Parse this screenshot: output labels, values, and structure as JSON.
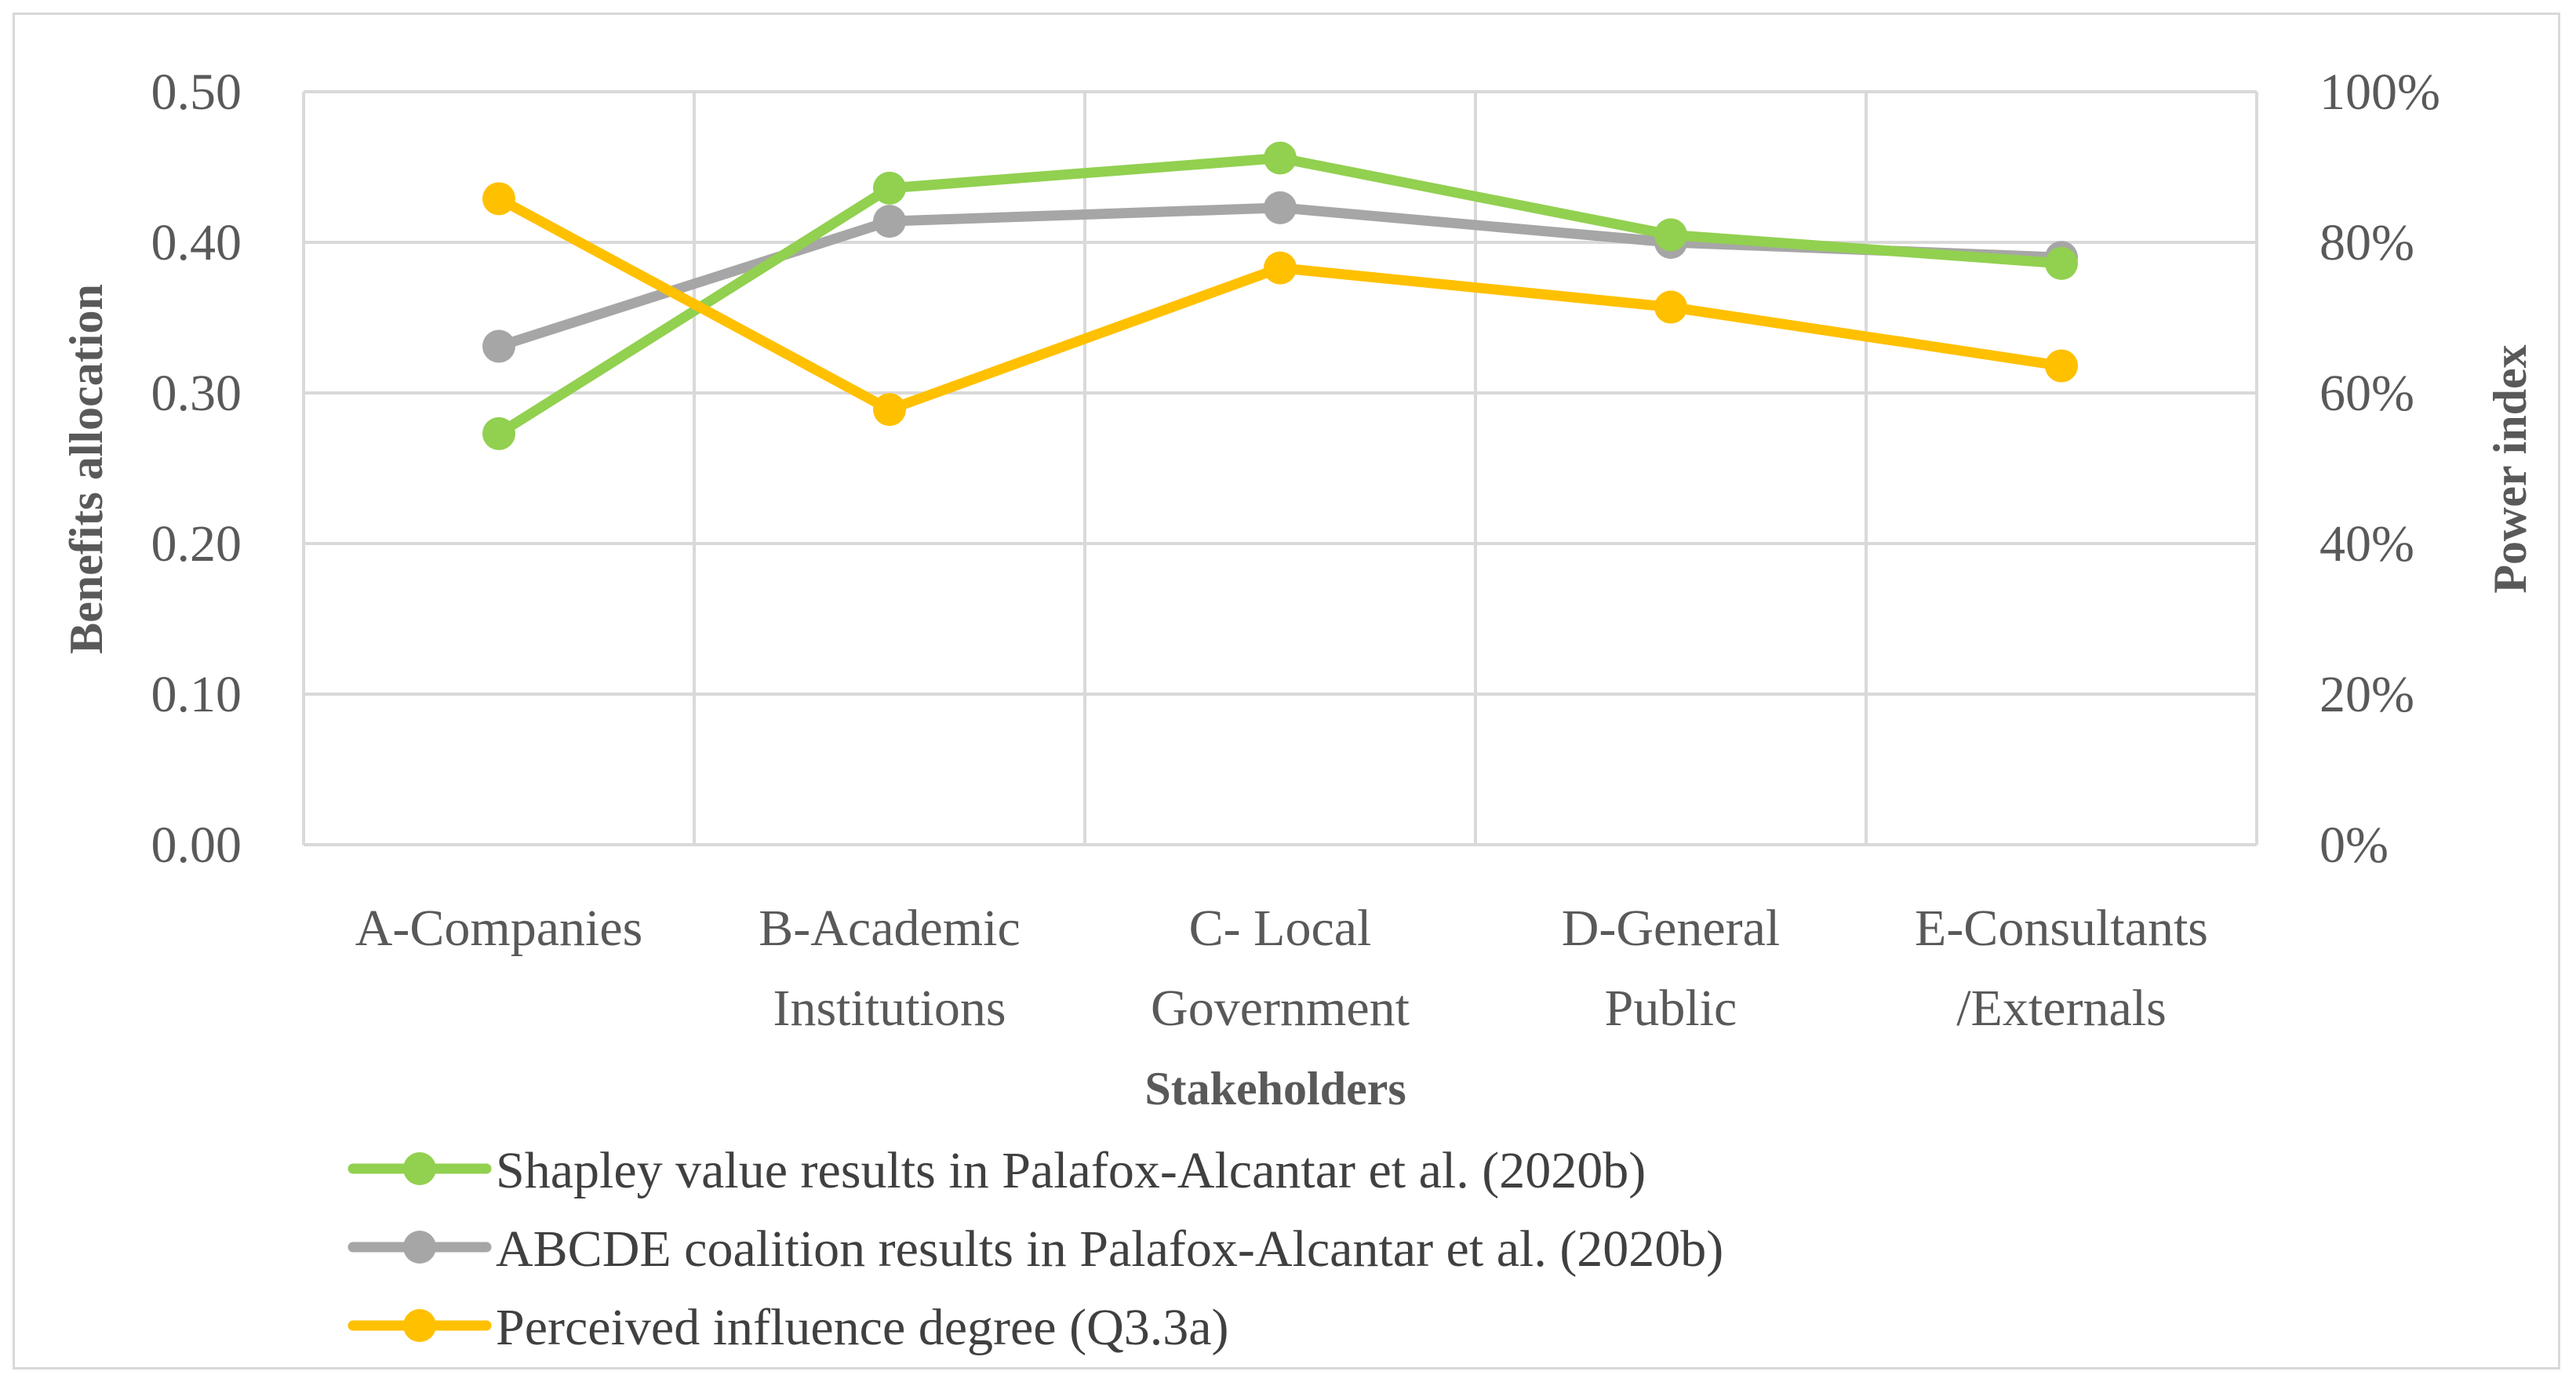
{
  "chart_data": {
    "type": "line",
    "categories": [
      [
        "A-Companies"
      ],
      [
        "B-Academic",
        "Institutions"
      ],
      [
        "C- Local",
        "Government"
      ],
      [
        "D-General",
        "Public"
      ],
      [
        "E-Consultants",
        "/Externals"
      ]
    ],
    "xlabel": "Stakeholders",
    "ylabel": "Benefits allocation",
    "y2label": "Power index",
    "ylim": [
      0,
      0.5
    ],
    "y2lim": [
      0,
      100
    ],
    "y_ticks": [
      "0.00",
      "0.10",
      "0.20",
      "0.30",
      "0.40",
      "0.50"
    ],
    "y2_ticks": [
      "0%",
      "20%",
      "40%",
      "60%",
      "80%",
      "100%"
    ],
    "grid": true,
    "legend_position": "bottom",
    "series": [
      {
        "name": "Shapley value results in Palafox-Alcantar et al. (2020b)",
        "axis": "left",
        "color": "#92d050",
        "values": [
          0.273,
          0.436,
          0.456,
          0.405,
          0.386
        ]
      },
      {
        "name": "ABCDE coalition results in Palafox-Alcantar et al. (2020b)",
        "axis": "left",
        "color": "#a6a6a6",
        "values": [
          0.331,
          0.414,
          0.423,
          0.4,
          0.39
        ]
      },
      {
        "name": "Perceived influence degree (Q3.3a)",
        "axis": "right",
        "color": "#ffc000",
        "values": [
          85.8,
          57.8,
          76.6,
          71.4,
          63.6
        ]
      }
    ]
  }
}
